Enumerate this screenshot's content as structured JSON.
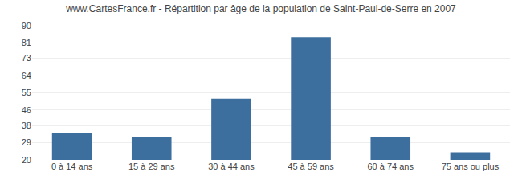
{
  "chart_data": {
    "type": "bar",
    "title": "www.CartesFrance.fr - Répartition par âge de la population de Saint-Paul-de-Serre en 2007",
    "categories": [
      "0 à 14 ans",
      "15 à 29 ans",
      "30 à 44 ans",
      "45 à 59 ans",
      "60 à 74 ans",
      "75 ans ou plus"
    ],
    "values": [
      34,
      32,
      52,
      84,
      32,
      24
    ],
    "color": "#3d6f9e",
    "ylim": [
      20,
      90
    ],
    "yticks": [
      20,
      29,
      38,
      46,
      55,
      64,
      73,
      81,
      90
    ],
    "grid": true
  }
}
